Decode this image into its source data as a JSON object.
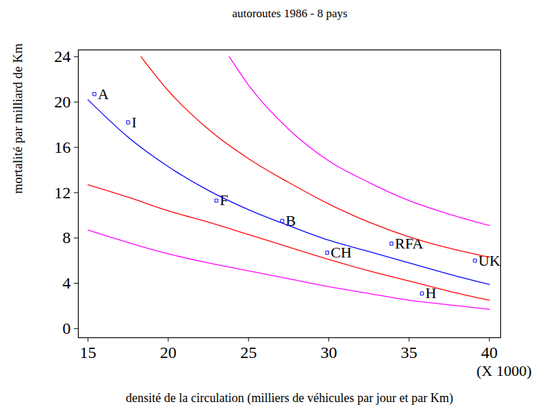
{
  "chart_data": {
    "type": "scatter",
    "title": "autoroutes 1986 - 8 pays",
    "x_label": "densité de la circulation (milliers de véhicules par jour et par Km)",
    "y_label": "mortalité par milliard de Km",
    "annotation": "(X 1000)",
    "xlim": [
      14.4,
      40.7
    ],
    "ylim": [
      -0.8,
      24.6
    ],
    "xticks": [
      15,
      20,
      25,
      30,
      35,
      40
    ],
    "yticks": [
      0,
      4,
      8,
      12,
      16,
      20,
      24
    ],
    "series": [
      {
        "type": "scatter",
        "color": "#0000ff",
        "marker": "square",
        "labels": [
          "A",
          "I",
          "F",
          "B",
          "CH",
          "RFA",
          "H",
          "UK"
        ],
        "x": [
          15.4,
          17.5,
          23.0,
          27.1,
          29.9,
          33.9,
          35.8,
          39.1
        ],
        "values": [
          20.7,
          18.2,
          11.3,
          9.5,
          6.7,
          7.5,
          3.1,
          6.0
        ]
      },
      {
        "type": "line",
        "color": "#0000ff",
        "x": [
          15,
          17.5,
          20,
          22.5,
          25,
          27.5,
          30,
          32.5,
          35,
          37.5,
          40
        ],
        "values": [
          20.2,
          16.9,
          14.3,
          12.2,
          10.5,
          9.1,
          7.8,
          6.8,
          5.8,
          4.8,
          3.9
        ]
      },
      {
        "type": "line",
        "color": "#ff0000",
        "x": [
          18.3,
          20,
          22.5,
          25,
          27.5,
          30,
          32.5,
          35,
          37.5,
          40
        ],
        "values": [
          24,
          21.0,
          17.6,
          15.0,
          12.9,
          11.0,
          9.4,
          8.1,
          7.1,
          6.3
        ]
      },
      {
        "type": "line",
        "color": "#ff0000",
        "x": [
          15,
          17.5,
          20,
          22.5,
          25,
          27.5,
          30,
          32.5,
          35,
          37.5,
          40
        ],
        "values": [
          12.7,
          11.6,
          10.4,
          9.4,
          8.3,
          7.2,
          6.1,
          5.1,
          4.2,
          3.3,
          2.5
        ]
      },
      {
        "type": "line",
        "color": "#ff00ff",
        "x": [
          23.8,
          25,
          27.5,
          30,
          32.5,
          35,
          37.5,
          40
        ],
        "values": [
          24,
          21.5,
          17.6,
          14.8,
          12.9,
          11.3,
          10.1,
          9.1
        ]
      },
      {
        "type": "line",
        "color": "#ff00ff",
        "x": [
          15,
          17.5,
          20,
          22.5,
          25,
          27.5,
          30,
          32.5,
          35,
          37.5,
          40
        ],
        "values": [
          8.7,
          7.6,
          6.6,
          5.8,
          5.1,
          4.4,
          3.7,
          3.1,
          2.5,
          2.1,
          1.7
        ]
      }
    ]
  }
}
